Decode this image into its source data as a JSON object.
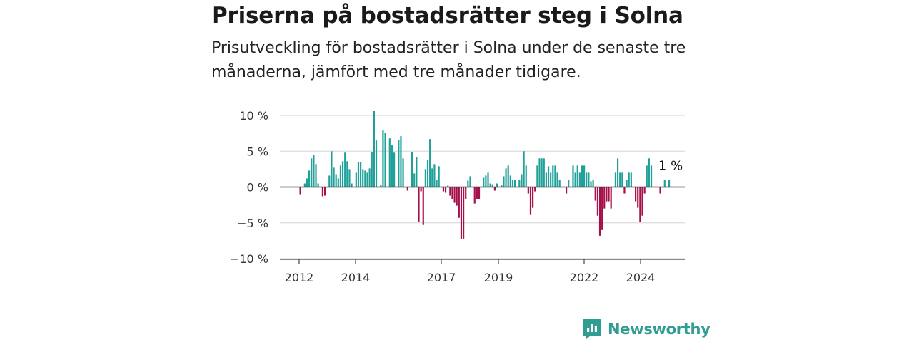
{
  "header": {
    "title": "Priserna på bostadsrätter steg i Solna",
    "subtitle": "Prisutveckling för bostadsrätter i Solna under de senaste tre månaderna, jämfört med tre månader tidigare."
  },
  "brand": {
    "name": "Newsworthy",
    "icon": "newsworthy-logo-icon",
    "color": "#2f9d91"
  },
  "colors": {
    "positive": "#1fa098",
    "negative": "#a6104a",
    "grid": "#dcdcdc",
    "zero": "#333333"
  },
  "chart_data": {
    "type": "bar",
    "title": "Priserna på bostadsrätter steg i Solna",
    "subtitle": "Prisutveckling för bostadsrätter i Solna under de senaste tre månaderna, jämfört med tre månader tidigare.",
    "unit": "%",
    "x_start": "2012-01",
    "x_ticks": [
      "2012",
      "2014",
      "2017",
      "2019",
      "2022",
      "2024"
    ],
    "y_ticks": [
      "10 %",
      "5 %",
      "0 %",
      "−5 %",
      "−10 %"
    ],
    "y_tick_values": [
      10,
      5,
      0,
      -5,
      -10
    ],
    "ylim": [
      -10,
      10
    ],
    "grid": true,
    "last_label": "1 %",
    "values": [
      -1.0,
      0.0,
      0.5,
      1.2,
      2.3,
      4.0,
      4.5,
      3.2,
      0.5,
      0.0,
      -1.3,
      -1.2,
      0.0,
      1.6,
      5.0,
      2.7,
      1.8,
      1.2,
      3.0,
      3.6,
      4.8,
      3.6,
      2.5,
      0.5,
      0.0,
      2.0,
      3.5,
      3.5,
      2.5,
      2.3,
      2.0,
      2.6,
      4.9,
      10.6,
      6.5,
      0.0,
      0.3,
      7.9,
      7.6,
      0.0,
      6.8,
      5.9,
      4.8,
      0.0,
      6.6,
      7.1,
      4.0,
      0.0,
      -0.5,
      0.0,
      4.9,
      1.9,
      4.2,
      -4.9,
      -0.6,
      -5.3,
      2.5,
      3.8,
      6.7,
      2.6,
      3.2,
      1.0,
      2.9,
      0.0,
      -0.6,
      -0.8,
      0.2,
      -1.2,
      -1.7,
      -2.2,
      -2.6,
      -4.3,
      -7.3,
      -7.2,
      -1.7,
      0.9,
      1.5,
      0.0,
      -2.3,
      -1.7,
      -1.7,
      0.0,
      1.3,
      1.6,
      2.0,
      0.5,
      0.4,
      -0.5,
      0.5,
      0.0,
      0.3,
      1.5,
      2.6,
      3.0,
      1.6,
      1.0,
      1.0,
      0.0,
      1.0,
      1.8,
      5.0,
      3.0,
      -0.9,
      -3.9,
      -2.9,
      -0.6,
      3.0,
      4.0,
      4.0,
      4.0,
      2.0,
      2.9,
      2.0,
      3.0,
      3.0,
      2.0,
      1.0,
      0.0,
      0.0,
      -0.9,
      1.0,
      0.0,
      3.0,
      2.0,
      3.0,
      2.0,
      3.0,
      3.0,
      2.0,
      2.0,
      0.8,
      1.0,
      -1.9,
      -4.0,
      -6.8,
      -6.0,
      -3.0,
      -2.0,
      -2.0,
      -3.0,
      0.0,
      2.0,
      4.0,
      2.0,
      2.0,
      -0.9,
      1.0,
      2.0,
      2.0,
      0.0,
      -2.0,
      -2.9,
      -4.9,
      -4.0,
      -0.9,
      3.0,
      4.0,
      3.0,
      0.0,
      0.0,
      0.0,
      -0.9,
      0.0,
      1.0,
      0.0,
      1.0
    ]
  }
}
